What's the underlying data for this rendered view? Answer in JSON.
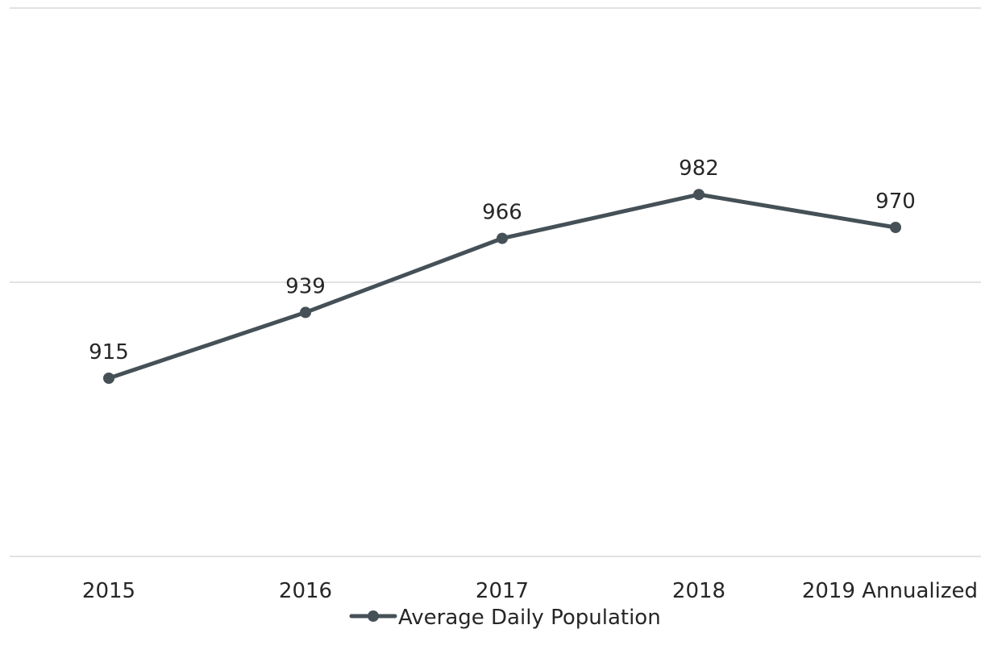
{
  "chart_data": {
    "type": "line",
    "categories": [
      "2015",
      "2016",
      "2017",
      "2018",
      "2019 Annualized"
    ],
    "series": [
      {
        "name": "Average Daily Population",
        "values": [
          915,
          939,
          966,
          982,
          970
        ],
        "data_labels": [
          "915",
          "939",
          "966",
          "982",
          "970"
        ]
      }
    ],
    "ylim": [
      850,
      1050
    ],
    "gridlines": [
      850,
      950,
      1050
    ],
    "grid": "horizontal",
    "legend_position": "bottom",
    "line_color": "#455057",
    "grid_color": "#d9d9d9",
    "text_color": "#262626"
  }
}
